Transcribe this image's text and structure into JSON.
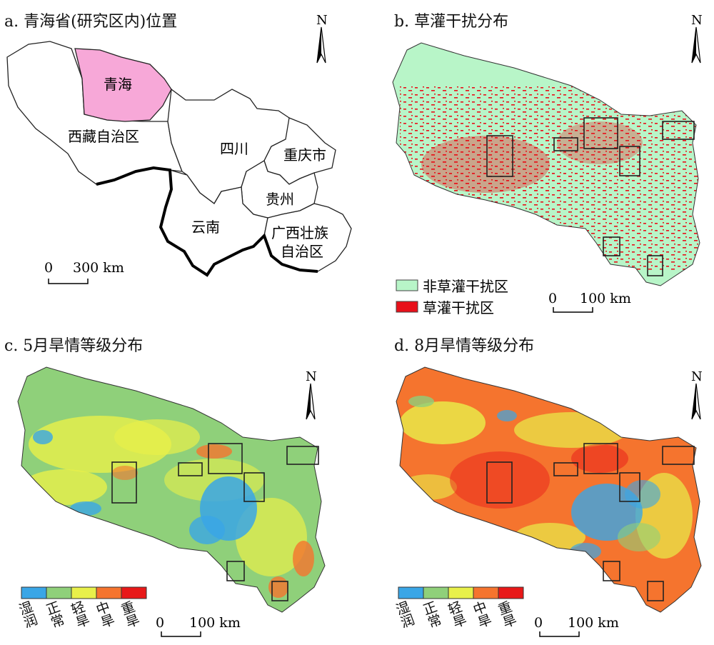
{
  "panels": {
    "a": {
      "title": "a. 青海省(研究区内)位置",
      "regions": {
        "qinghai": "青海",
        "xizang": "西藏自治区",
        "sichuan": "四川",
        "chongqing": "重庆市",
        "guizhou": "贵州",
        "yunnan": "云南",
        "guangxi_line1": "广西壮族",
        "guangxi_line2": "自治区"
      },
      "scale": {
        "zero": "0",
        "label": "300 km"
      },
      "north": "N"
    },
    "b": {
      "title": "b. 草灌干扰分布",
      "legend": [
        {
          "label": "非草灌干扰区",
          "color": "#b8f5c8"
        },
        {
          "label": "草灌干扰区",
          "color": "#e8101a"
        }
      ],
      "scale": {
        "zero": "0",
        "label": "100 km"
      },
      "north": "N"
    },
    "c": {
      "title": "c. 5月旱情等级分布",
      "scale": {
        "zero": "0",
        "label": "100 km"
      },
      "north": "N"
    },
    "d": {
      "title": "d. 8月旱情等级分布",
      "scale": {
        "zero": "0",
        "label": "100 km"
      },
      "north": "N"
    }
  },
  "drought_classes": [
    {
      "label": "湿润",
      "color": "#3aa6e6"
    },
    {
      "label": "正常",
      "color": "#8fd07a"
    },
    {
      "label": "轻旱",
      "color": "#e8f04a"
    },
    {
      "label": "中旱",
      "color": "#f5742e"
    },
    {
      "label": "重旱",
      "color": "#e81818"
    }
  ],
  "colors": {
    "qinghai_fill": "#f7a8d8",
    "non_disturb": "#b8f5c8",
    "disturb": "#e8101a"
  }
}
